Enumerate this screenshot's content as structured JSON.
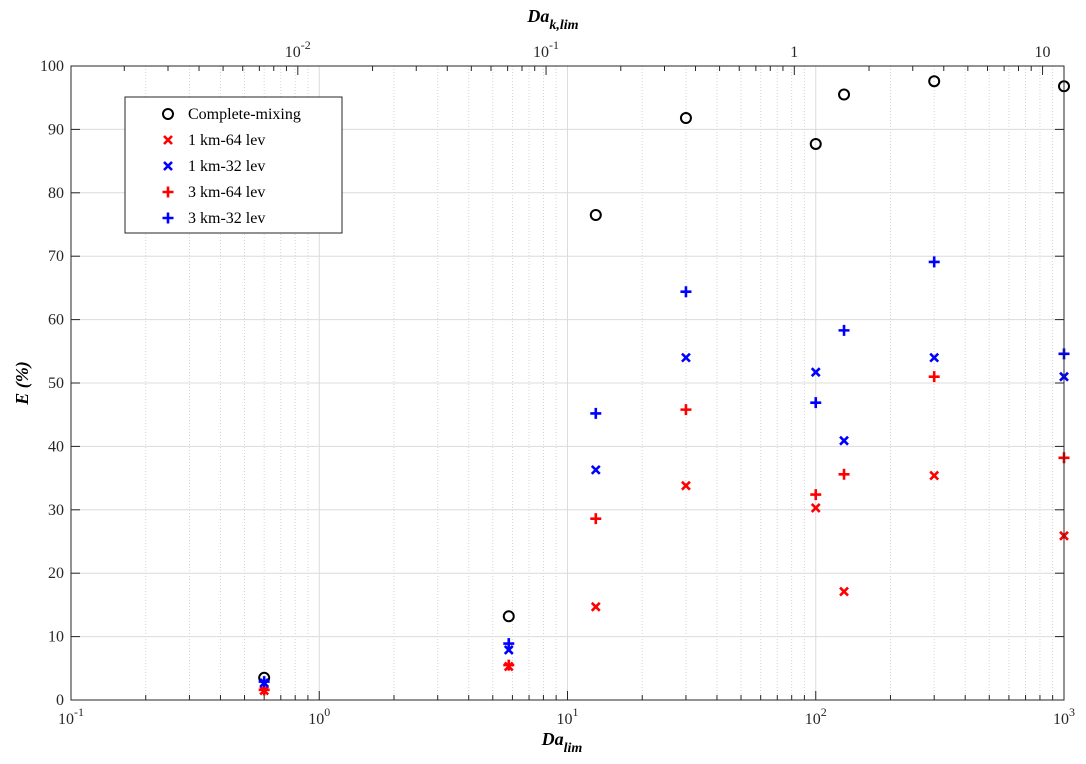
{
  "chart_data": {
    "type": "scatter",
    "xlabel": "Da",
    "xlabel_sub": "lim",
    "ylabel": "E (%)",
    "top_label": "Da",
    "top_label_sub": "k,lim",
    "xscale": "log",
    "xlim": [
      0.1,
      1000
    ],
    "ylim": [
      0,
      100
    ],
    "grid": true,
    "legend_position": "top-left",
    "x_ticks": [
      {
        "base": "10",
        "exp": "-1"
      },
      {
        "base": "10",
        "exp": "0"
      },
      {
        "base": "10",
        "exp": "1"
      },
      {
        "base": "10",
        "exp": "2"
      },
      {
        "base": "10",
        "exp": "3"
      }
    ],
    "y_ticks": [
      "0",
      "10",
      "20",
      "30",
      "40",
      "50",
      "60",
      "70",
      "80",
      "90",
      "100"
    ],
    "top_ticks": [
      {
        "value": 0.01,
        "base": "10",
        "exp": "-2"
      },
      {
        "value": 0.1,
        "base": "10",
        "exp": "-1"
      },
      {
        "value": 1,
        "label": "1"
      },
      {
        "value": 10,
        "label": "10"
      }
    ],
    "top_axis_ratio": 0.0122,
    "x": [
      0.6,
      5.8,
      13,
      30,
      100,
      130,
      300,
      1000
    ],
    "series": [
      {
        "name": "Complete-mixing",
        "marker": "circle",
        "color": "#000000",
        "values": [
          3.5,
          13.2,
          76.5,
          91.8,
          87.7,
          95.5,
          97.6,
          96.8
        ]
      },
      {
        "name": "1 km-64 lev",
        "marker": "x",
        "color": "#ff0000",
        "values": [
          1.5,
          5.3,
          14.7,
          33.8,
          30.3,
          17.1,
          35.4,
          25.9
        ]
      },
      {
        "name": "1 km-32 lev",
        "marker": "x",
        "color": "#0000ff",
        "values": [
          2.7,
          7.9,
          36.3,
          54.0,
          51.7,
          40.9,
          54.0,
          51.0
        ]
      },
      {
        "name": "3 km-64 lev",
        "marker": "plus",
        "color": "#ff0000",
        "values": [
          1.6,
          5.5,
          28.6,
          45.8,
          32.4,
          35.6,
          51.0,
          38.2
        ]
      },
      {
        "name": "3 km-32 lev",
        "marker": "plus",
        "color": "#0000ff",
        "values": [
          2.9,
          8.9,
          45.2,
          64.4,
          46.9,
          58.3,
          69.1,
          54.6
        ]
      }
    ]
  }
}
